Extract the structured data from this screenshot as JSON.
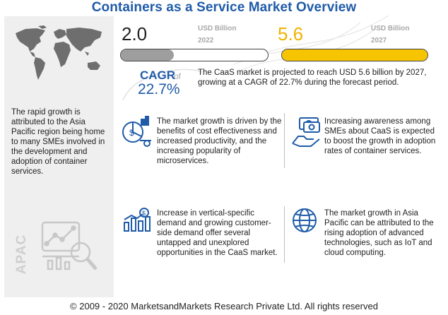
{
  "title": "Containers as a Service Market Overview",
  "market": {
    "start": {
      "value": "2.0",
      "unit": "USD Billion",
      "year": "2022",
      "color": "#9e9e9e",
      "fill_fraction": 0.36
    },
    "end": {
      "value": "5.6",
      "unit": "USD Billion",
      "year": "2027",
      "color": "#f6c400",
      "fill_fraction": 1.0
    }
  },
  "cagr": {
    "label": "CAGR",
    "of": "of",
    "value": "22.7%",
    "summary": "The CaaS market is projected to reach USD 5.6 billion by 2027, growing at a CAGR of 22.7% during the forecast period."
  },
  "left_panel": {
    "text": "The rapid growth is attributed to the Asia Pacific region being home to many SMEs involved in the development and adoption of container services.",
    "region_label": "APAC",
    "map_icon": "world-map-icon",
    "region_icon": "analytics-magnifier-icon"
  },
  "insights": [
    {
      "icon": "cost-analysis-icon",
      "text": "The market growth is driven by the benefits of cost effectiveness and increased productivity, and the increasing popularity of microservices."
    },
    {
      "icon": "money-awareness-icon",
      "text": "Increasing awareness among SMEs about CaaS is expected to boost the growth in adoption rates of container services."
    },
    {
      "icon": "bar-growth-dollar-icon",
      "text": "Increase in vertical-specific demand and growing customer-side demand offer several untapped and unexplored opportunities in the CaaS market."
    },
    {
      "icon": "globe-network-icon",
      "text": "The market growth in Asia Pacific can be attributed to the rising adoption of advanced technologies, such as IoT and cloud computing."
    }
  ],
  "colors": {
    "accent": "#1f5ba8",
    "highlight": "#f6c400",
    "grey": "#9e9e9e"
  },
  "footer": "© 2009 - 2020 MarketsandMarkets Research Private Ltd. All rights reserved"
}
